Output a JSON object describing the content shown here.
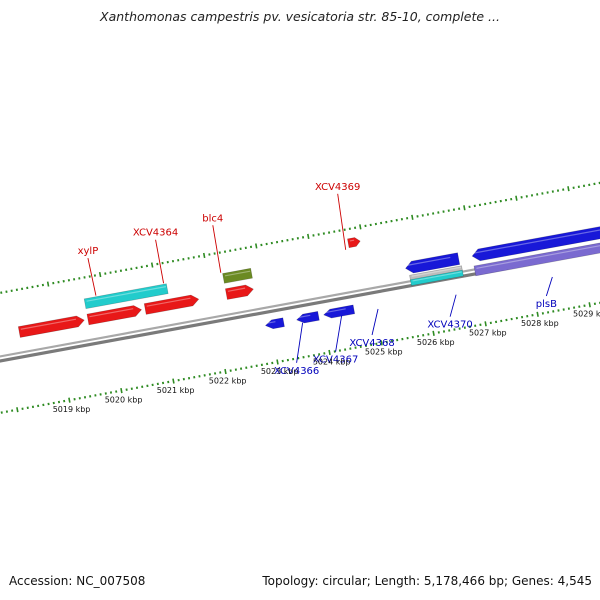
{
  "title": "Xanthomonas campestris pv. vesicatoria str. 85-10, complete ...",
  "footer": {
    "accession": "Accession: NC_007508",
    "summary": "Topology: circular; Length: 5,178,466 bp; Genes: 4,545"
  },
  "colors": {
    "forward_cds": "#e81818",
    "reverse_cds": "#1818d8",
    "rna": "#22cccc",
    "pseudo": "#6b8a22",
    "misc": "#7a6ad0",
    "backbone": "#808080",
    "tick": "#2e8b22",
    "forward_label": "#cc0000",
    "reverse_label": "#0000bb"
  },
  "ruler": {
    "ticks": [
      {
        "kbp": 5019,
        "label": "5019 kbp"
      },
      {
        "kbp": 5020,
        "label": "5020 kbp"
      },
      {
        "kbp": 5021,
        "label": "5021 kbp"
      },
      {
        "kbp": 5022,
        "label": "5022 kbp"
      },
      {
        "kbp": 5023,
        "label": "5023 kbp"
      },
      {
        "kbp": 5024,
        "label": "5024 kbp"
      },
      {
        "kbp": 5025,
        "label": "5025 kbp"
      },
      {
        "kbp": 5026,
        "label": "5026 kbp"
      },
      {
        "kbp": 5027,
        "label": "5027 kbp"
      },
      {
        "kbp": 5028,
        "label": "5028 kbp"
      },
      {
        "kbp": 5029,
        "label": "5029 kbp"
      }
    ]
  },
  "features": [
    {
      "name": "forward-cds-1",
      "strand": "+",
      "lane": "fwd-inner",
      "start_kbp": 5018.3,
      "end_kbp": 5019.55,
      "type": "cds"
    },
    {
      "name": "forward-cds-2",
      "strand": "+",
      "lane": "fwd-inner",
      "start_kbp": 5019.62,
      "end_kbp": 5020.65,
      "type": "cds"
    },
    {
      "name": "forward-cds-3",
      "strand": "+",
      "lane": "fwd-inner",
      "start_kbp": 5020.72,
      "end_kbp": 5021.75,
      "type": "cds"
    },
    {
      "name": "xylP-rna",
      "strand": "+",
      "lane": "fwd-outer",
      "start_kbp": 5019.62,
      "end_kbp": 5021.2,
      "type": "rna"
    },
    {
      "name": "forward-cds-4",
      "strand": "+",
      "lane": "fwd-inner",
      "start_kbp": 5022.28,
      "end_kbp": 5022.8,
      "type": "cds"
    },
    {
      "name": "blc4-pseudo",
      "strand": "+",
      "lane": "fwd-outer",
      "start_kbp": 5022.28,
      "end_kbp": 5022.82,
      "type": "pseudo"
    },
    {
      "name": "xcv4369-cds",
      "strand": "+",
      "lane": "fwd-outer-high",
      "start_kbp": 5024.72,
      "end_kbp": 5024.95,
      "type": "cds"
    },
    {
      "name": "reverse-cds-1",
      "strand": "-",
      "lane": "rev",
      "start_kbp": 5022.9,
      "end_kbp": 5023.25,
      "type": "cds"
    },
    {
      "name": "reverse-cds-2",
      "strand": "-",
      "lane": "rev",
      "start_kbp": 5023.5,
      "end_kbp": 5023.92,
      "type": "cds"
    },
    {
      "name": "reverse-cds-3",
      "strand": "-",
      "lane": "rev",
      "start_kbp": 5024.02,
      "end_kbp": 5024.6,
      "type": "cds"
    },
    {
      "name": "reverse-cds-4",
      "strand": "-",
      "lane": "rev-high",
      "start_kbp": 5025.7,
      "end_kbp": 5026.72,
      "type": "cds"
    },
    {
      "name": "reverse-misc-gray",
      "strand": "-",
      "lane": "rev-mid",
      "start_kbp": 5025.75,
      "end_kbp": 5026.75,
      "type": "gray"
    },
    {
      "name": "xcv4370-rna",
      "strand": "-",
      "lane": "rev-low",
      "start_kbp": 5025.75,
      "end_kbp": 5026.75,
      "type": "rna"
    },
    {
      "name": "reverse-cds-5",
      "strand": "-",
      "lane": "rev-high",
      "start_kbp": 5026.98,
      "end_kbp": 5030.3,
      "type": "cds"
    },
    {
      "name": "plsB-misc",
      "strand": "-",
      "lane": "rev-misc",
      "start_kbp": 5026.98,
      "end_kbp": 5030.3,
      "type": "misc"
    }
  ],
  "labels": [
    {
      "text": "xylP",
      "strand": "+",
      "kbp": 5019.85,
      "height": 75
    },
    {
      "text": "XCV4364",
      "strand": "+",
      "kbp": 5021.15,
      "height": 87
    },
    {
      "text": "blc4",
      "strand": "+",
      "kbp": 5022.25,
      "height": 95
    },
    {
      "text": "XCV4369",
      "strand": "+",
      "kbp": 5024.65,
      "height": 112
    },
    {
      "text": "XCV4366",
      "strand": "-",
      "kbp": 5023.6,
      "height": 80
    },
    {
      "text": "XCV4367",
      "strand": "-",
      "kbp": 5024.35,
      "height": 72
    },
    {
      "text": "XCV4368",
      "strand": "-",
      "kbp": 5025.05,
      "height": 52
    },
    {
      "text": "XCV4370",
      "strand": "-",
      "kbp": 5026.55,
      "height": 44
    },
    {
      "text": "plsB",
      "strand": "-",
      "kbp": 5028.4,
      "height": 38
    }
  ]
}
